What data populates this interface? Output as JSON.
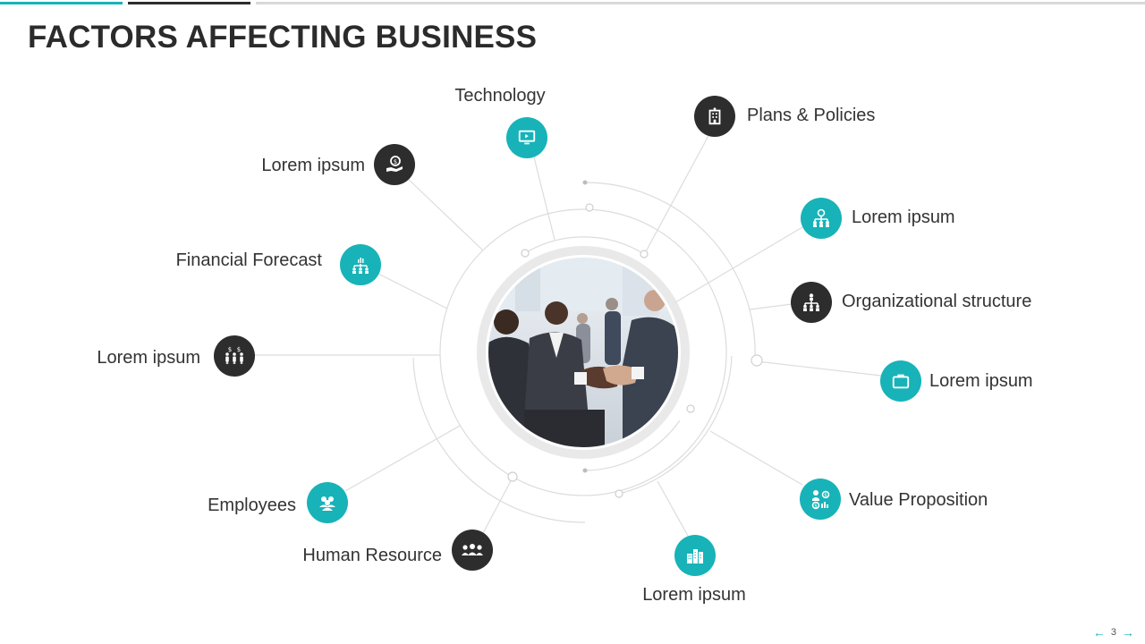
{
  "page": {
    "title": "FACTORS AFFECTING BUSINESS",
    "page_number": "3"
  },
  "colors": {
    "teal": "#17b3b8",
    "dark": "#2d2d2d",
    "text": "#333333",
    "line": "#d9d9d9"
  },
  "factors": [
    {
      "label": "Technology",
      "icon": "monitor-icon",
      "color": "teal"
    },
    {
      "label": "Plans & Policies",
      "icon": "building-icon",
      "color": "dark"
    },
    {
      "label": "Lorem ipsum",
      "icon": "money-hand-icon",
      "color": "dark"
    },
    {
      "label": "Lorem ipsum",
      "icon": "network-money-icon",
      "color": "teal"
    },
    {
      "label": "Financial Forecast",
      "icon": "chart-hierarchy-icon",
      "color": "teal"
    },
    {
      "label": "Organizational structure",
      "icon": "org-chart-icon",
      "color": "dark"
    },
    {
      "label": "Lorem ipsum",
      "icon": "people-money-icon",
      "color": "dark"
    },
    {
      "label": "Lorem ipsum",
      "icon": "briefcase-icon",
      "color": "teal"
    },
    {
      "label": "Value Proposition",
      "icon": "value-icon",
      "color": "teal"
    },
    {
      "label": "Employees",
      "icon": "people-group-icon",
      "color": "teal"
    },
    {
      "label": "Human Resource",
      "icon": "team-icon",
      "color": "dark"
    },
    {
      "label": "Lorem ipsum",
      "icon": "city-icon",
      "color": "teal"
    }
  ]
}
